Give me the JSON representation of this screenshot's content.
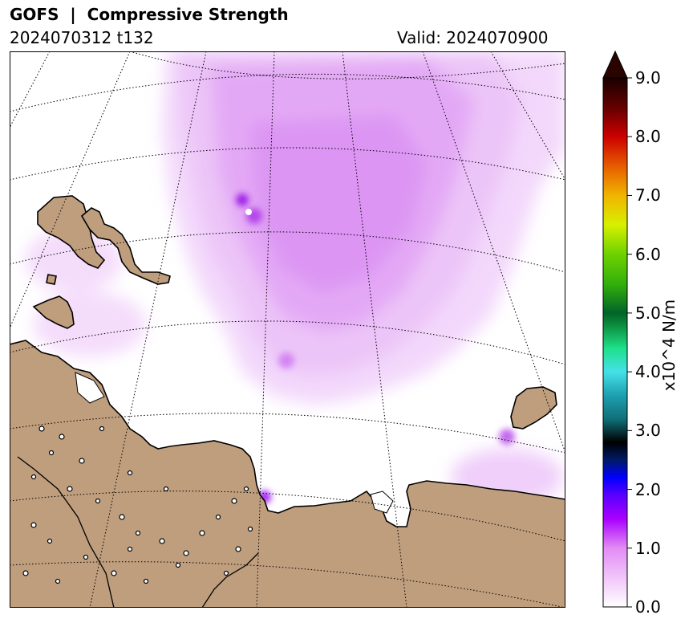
{
  "header": {
    "title": "GOFS  |  Compressive Strength",
    "init_label": "2024070312 t132",
    "valid_label": "Valid: 2024070900"
  },
  "colorbar": {
    "unit_label": "x10^4 N/m",
    "min": 0.0,
    "max": 9.0,
    "extend": "max",
    "ticks": [
      "0.0",
      "1.0",
      "2.0",
      "3.0",
      "4.0",
      "5.0",
      "6.0",
      "7.0",
      "8.0",
      "9.0"
    ],
    "extend_color": "#2a0500",
    "stops": [
      {
        "value": 0.0,
        "color": "#ffffff"
      },
      {
        "value": 1.0,
        "color": "#e28cf4"
      },
      {
        "value": 1.5,
        "color": "#a800ff"
      },
      {
        "value": 1.9,
        "color": "#5a00ff"
      },
      {
        "value": 2.2,
        "color": "#0000ff"
      },
      {
        "value": 2.5,
        "color": "#001a66"
      },
      {
        "value": 2.8,
        "color": "#000000"
      },
      {
        "value": 3.2,
        "color": "#10707a"
      },
      {
        "value": 3.6,
        "color": "#1ea0b0"
      },
      {
        "value": 4.0,
        "color": "#45e0e8"
      },
      {
        "value": 4.4,
        "color": "#1ee08a"
      },
      {
        "value": 4.8,
        "color": "#0c8c3c"
      },
      {
        "value": 5.0,
        "color": "#006428"
      },
      {
        "value": 5.5,
        "color": "#34b00a"
      },
      {
        "value": 6.0,
        "color": "#6ed200"
      },
      {
        "value": 6.5,
        "color": "#d8f000"
      },
      {
        "value": 7.0,
        "color": "#f0b400"
      },
      {
        "value": 7.5,
        "color": "#e65c00"
      },
      {
        "value": 8.0,
        "color": "#cc0000"
      },
      {
        "value": 8.5,
        "color": "#640000"
      },
      {
        "value": 9.0,
        "color": "#1a0000"
      }
    ]
  },
  "map": {
    "land_color": "#bf9e7e",
    "coast_color": "#000000",
    "grid_style": "dotted",
    "ice_color": "#d48af2"
  }
}
